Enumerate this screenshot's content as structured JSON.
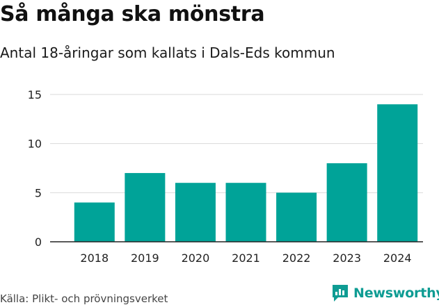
{
  "header": {
    "title": "Så många ska mönstra",
    "subtitle": "Antal 18-åringar som kallats i Dals-Eds kommun"
  },
  "footer": {
    "source": "Källa: Plikt- och prövningsverket",
    "brand": "Newsworthy"
  },
  "colors": {
    "bar": "#00a398",
    "grid": "#d9d9d9",
    "brand": "#0e9c93"
  },
  "chart_data": {
    "type": "bar",
    "title": "Så många ska mönstra",
    "subtitle": "Antal 18-åringar som kallats i Dals-Eds kommun",
    "xlabel": "",
    "ylabel": "",
    "categories": [
      "2018",
      "2019",
      "2020",
      "2021",
      "2022",
      "2023",
      "2024"
    ],
    "values": [
      4,
      7,
      6,
      6,
      5,
      8,
      14
    ],
    "ylim": [
      0,
      15
    ],
    "yticks": [
      0,
      5,
      10,
      15
    ],
    "grid": true,
    "legend": "none"
  }
}
